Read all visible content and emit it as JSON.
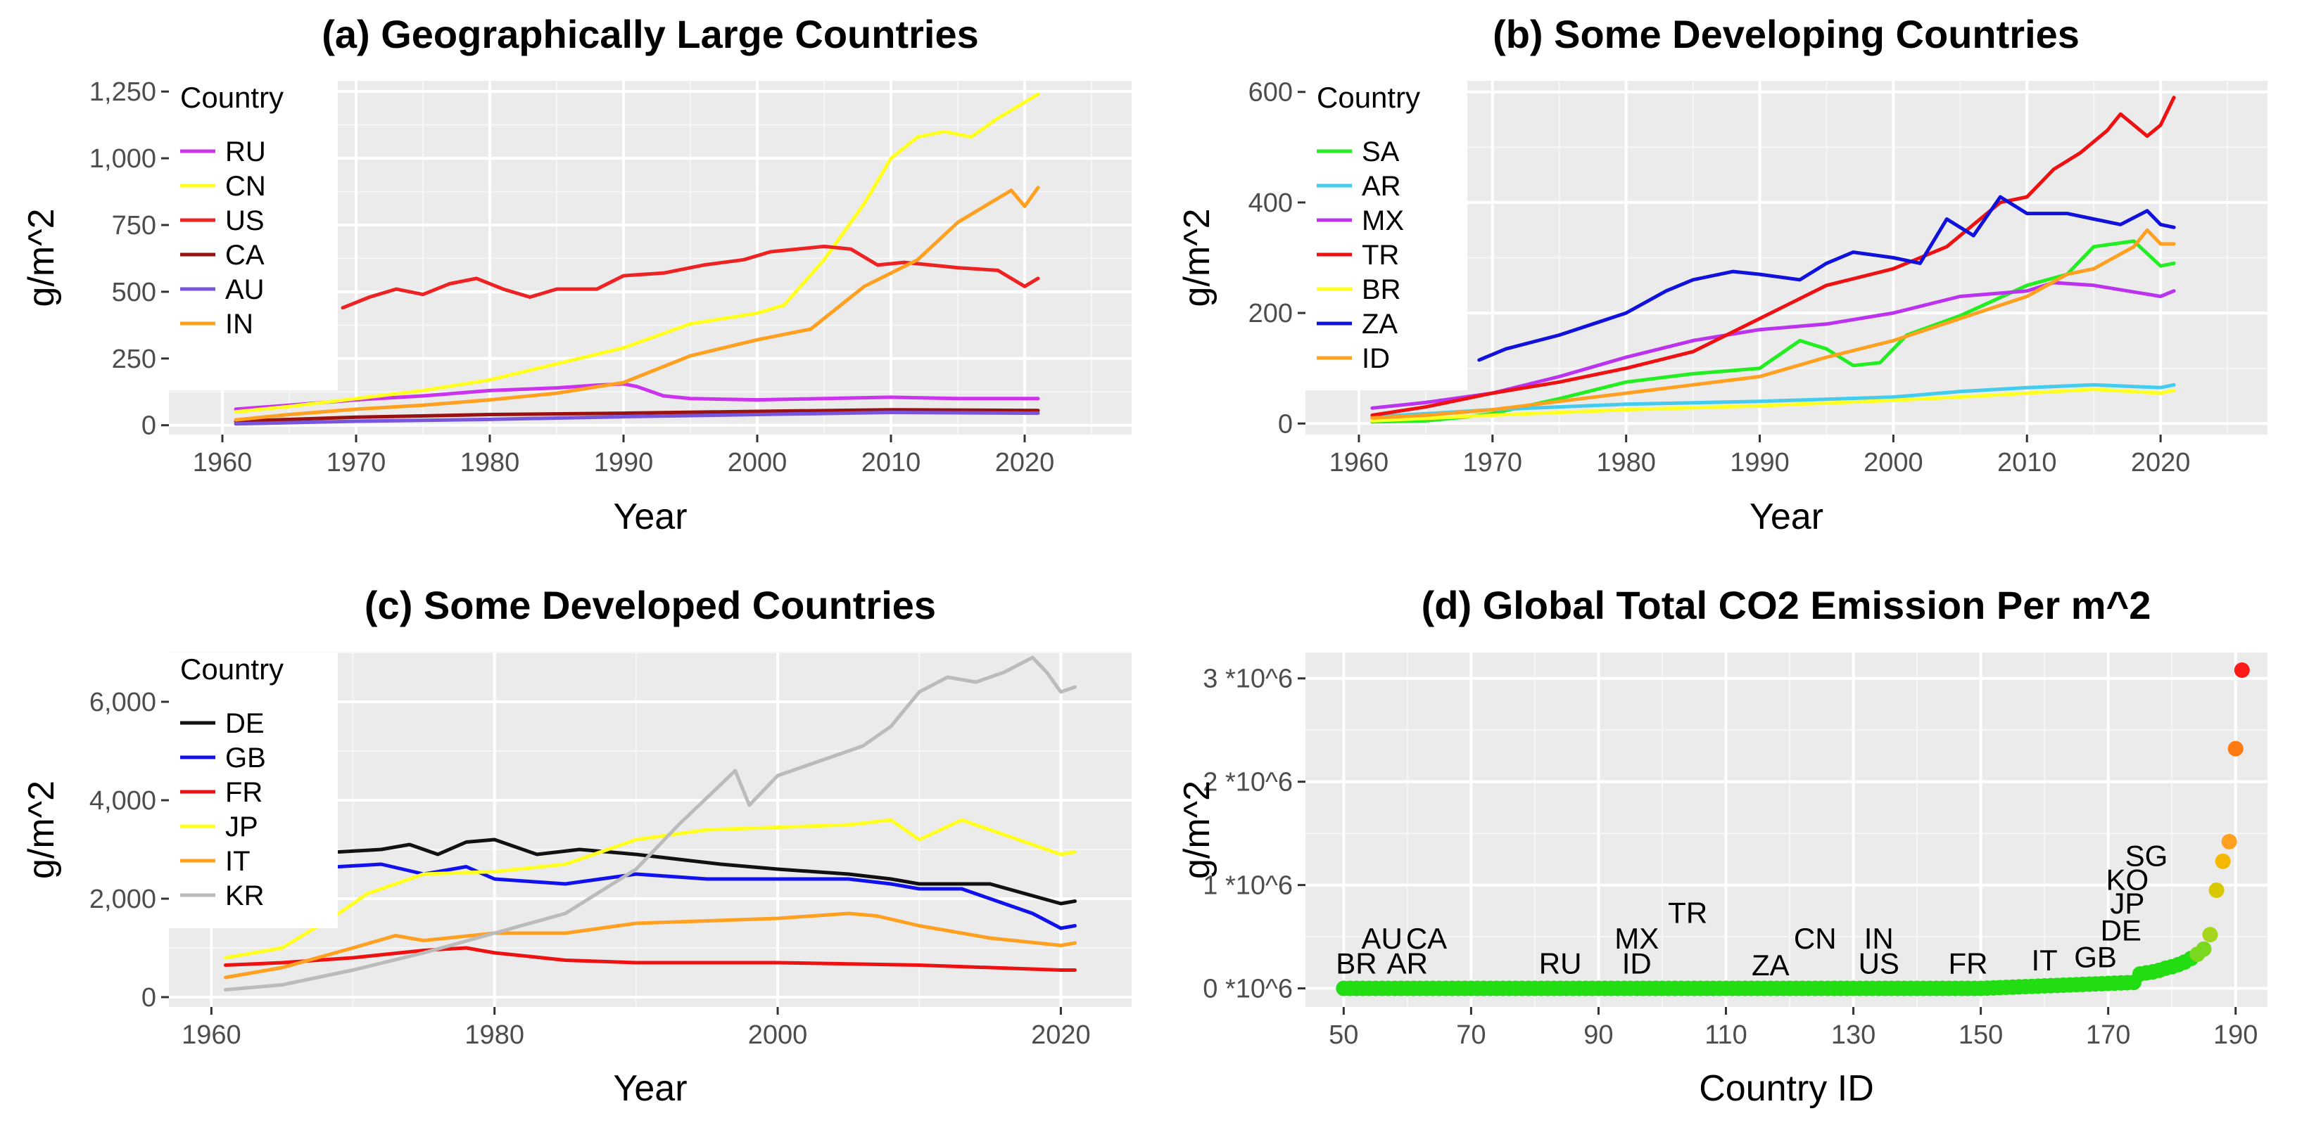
{
  "chart_data": [
    {
      "type": "line",
      "title": "(a) Geographically Large Countries",
      "xlabel": "Year",
      "ylabel": "g/m^2",
      "xlim": [
        1956,
        2028
      ],
      "ylim": [
        -35,
        1290
      ],
      "x_ticks": [
        1960,
        1970,
        1980,
        1990,
        2000,
        2010,
        2020
      ],
      "y_ticks": [
        0,
        250,
        500,
        750,
        1000,
        1250
      ],
      "y_tick_labels": [
        "0",
        "250",
        "500",
        "750",
        "1,000",
        "1,250"
      ],
      "grid": true,
      "legend": {
        "title": "Country",
        "placement": "top-left"
      },
      "series": [
        {
          "name": "RU",
          "color": "#cc33ee",
          "x": [
            1961,
            1965,
            1970,
            1975,
            1980,
            1985,
            1988,
            1990,
            1991,
            1993,
            1995,
            2000,
            2005,
            2010,
            2015,
            2021
          ],
          "y": [
            60,
            75,
            95,
            110,
            130,
            140,
            150,
            155,
            145,
            110,
            100,
            95,
            100,
            105,
            100,
            100
          ]
        },
        {
          "name": "CN",
          "color": "#ffff22",
          "x": [
            1961,
            1965,
            1970,
            1975,
            1980,
            1985,
            1990,
            1995,
            2000,
            2002,
            2005,
            2008,
            2010,
            2012,
            2014,
            2016,
            2018,
            2021
          ],
          "y": [
            50,
            70,
            100,
            130,
            170,
            230,
            290,
            380,
            420,
            450,
            620,
            830,
            1000,
            1080,
            1100,
            1080,
            1150,
            1240
          ]
        },
        {
          "name": "US",
          "color": "#ee2222",
          "x": [
            1969,
            1971,
            1973,
            1975,
            1977,
            1979,
            1981,
            1983,
            1985,
            1988,
            1990,
            1993,
            1996,
            1999,
            2001,
            2005,
            2007,
            2009,
            2011,
            2013,
            2015,
            2018,
            2020,
            2021
          ],
          "y": [
            440,
            480,
            510,
            490,
            530,
            550,
            510,
            480,
            510,
            510,
            560,
            570,
            600,
            620,
            650,
            670,
            660,
            600,
            610,
            600,
            590,
            580,
            520,
            550
          ]
        },
        {
          "name": "CA",
          "color": "#991111",
          "x": [
            1961,
            1970,
            1980,
            1990,
            2000,
            2010,
            2021
          ],
          "y": [
            15,
            30,
            40,
            45,
            52,
            58,
            55
          ]
        },
        {
          "name": "AU",
          "color": "#7755dd",
          "x": [
            1961,
            1970,
            1980,
            1990,
            2000,
            2010,
            2021
          ],
          "y": [
            5,
            15,
            22,
            32,
            40,
            48,
            45
          ]
        },
        {
          "name": "IN",
          "color": "#ffa020",
          "x": [
            1961,
            1965,
            1970,
            1975,
            1980,
            1985,
            1990,
            1995,
            2000,
            2004,
            2008,
            2012,
            2015,
            2018,
            2019,
            2020,
            2021
          ],
          "y": [
            20,
            40,
            60,
            75,
            95,
            120,
            160,
            260,
            320,
            360,
            520,
            620,
            760,
            850,
            880,
            820,
            890
          ]
        }
      ]
    },
    {
      "type": "line",
      "title": "(b) Some Developing Countries",
      "xlabel": "Year",
      "ylabel": "g/m^2",
      "xlim": [
        1956,
        2028
      ],
      "ylim": [
        -20,
        620
      ],
      "x_ticks": [
        1960,
        1970,
        1980,
        1990,
        2000,
        2010,
        2020
      ],
      "y_ticks": [
        0,
        200,
        400,
        600
      ],
      "y_tick_labels": [
        "0",
        "200",
        "400",
        "600"
      ],
      "grid": true,
      "legend": {
        "title": "Country",
        "placement": "top-left"
      },
      "series": [
        {
          "name": "SA",
          "color": "#22ee22",
          "x": [
            1961,
            1965,
            1968,
            1970,
            1975,
            1980,
            1985,
            1990,
            1993,
            1995,
            1997,
            1999,
            2001,
            2005,
            2010,
            2013,
            2015,
            2018,
            2020,
            2021
          ],
          "y": [
            3,
            5,
            12,
            18,
            45,
            75,
            90,
            100,
            150,
            135,
            105,
            110,
            160,
            195,
            250,
            270,
            320,
            330,
            285,
            290
          ]
        },
        {
          "name": "AR",
          "color": "#44ccee",
          "x": [
            1961,
            1970,
            1980,
            1990,
            2000,
            2005,
            2010,
            2015,
            2020,
            2021
          ],
          "y": [
            12,
            25,
            35,
            40,
            48,
            58,
            65,
            70,
            65,
            70
          ]
        },
        {
          "name": "MX",
          "color": "#bb33ee",
          "x": [
            1961,
            1965,
            1970,
            1975,
            1980,
            1985,
            1990,
            1995,
            2000,
            2005,
            2010,
            2012,
            2015,
            2020,
            2021
          ],
          "y": [
            28,
            38,
            55,
            85,
            120,
            150,
            170,
            180,
            200,
            230,
            240,
            255,
            250,
            230,
            240
          ]
        },
        {
          "name": "TR",
          "color": "#ee1111",
          "x": [
            1961,
            1965,
            1970,
            1975,
            1980,
            1985,
            1990,
            1995,
            2000,
            2002,
            2004,
            2006,
            2008,
            2010,
            2012,
            2014,
            2016,
            2017,
            2019,
            2020,
            2021
          ],
          "y": [
            15,
            30,
            55,
            75,
            100,
            130,
            190,
            250,
            280,
            300,
            320,
            360,
            400,
            410,
            460,
            490,
            530,
            560,
            520,
            540,
            590
          ]
        },
        {
          "name": "BR",
          "color": "#ffff22",
          "x": [
            1961,
            1970,
            1980,
            1990,
            2000,
            2005,
            2010,
            2015,
            2020,
            2021
          ],
          "y": [
            5,
            15,
            25,
            32,
            42,
            48,
            55,
            62,
            55,
            60
          ]
        },
        {
          "name": "ZA",
          "color": "#1111dd",
          "x": [
            1969,
            1971,
            1975,
            1980,
            1983,
            1985,
            1988,
            1990,
            1993,
            1995,
            1997,
            2000,
            2002,
            2004,
            2006,
            2008,
            2010,
            2013,
            2015,
            2017,
            2019,
            2020,
            2021
          ],
          "y": [
            115,
            135,
            160,
            200,
            240,
            260,
            275,
            270,
            260,
            290,
            310,
            300,
            290,
            370,
            340,
            410,
            380,
            380,
            370,
            360,
            385,
            360,
            355
          ]
        },
        {
          "name": "ID",
          "color": "#ffa020",
          "x": [
            1961,
            1965,
            1970,
            1975,
            1980,
            1985,
            1990,
            1995,
            2000,
            2005,
            2010,
            2013,
            2015,
            2018,
            2019,
            2020,
            2021
          ],
          "y": [
            10,
            15,
            25,
            40,
            55,
            70,
            85,
            120,
            150,
            190,
            230,
            270,
            280,
            320,
            350,
            325,
            325
          ]
        }
      ]
    },
    {
      "type": "line",
      "title": "(c) Some Developed Countries",
      "xlabel": "Year",
      "ylabel": "g/m^2",
      "xlim": [
        1957,
        2025
      ],
      "ylim": [
        -200,
        7000
      ],
      "x_ticks": [
        1960,
        1980,
        2000,
        2020
      ],
      "y_ticks": [
        0,
        2000,
        4000,
        6000
      ],
      "y_tick_labels": [
        "0",
        "2,000",
        "4,000",
        "6,000"
      ],
      "grid": true,
      "legend": {
        "title": "Country",
        "placement": "top-left"
      },
      "series": [
        {
          "name": "DE",
          "color": "#111111",
          "x": [
            1969,
            1972,
            1974,
            1976,
            1978,
            1980,
            1983,
            1986,
            1990,
            1993,
            1996,
            2000,
            2005,
            2008,
            2010,
            2015,
            2020,
            2021
          ],
          "y": [
            2950,
            3000,
            3100,
            2900,
            3150,
            3200,
            2900,
            3000,
            2900,
            2800,
            2700,
            2600,
            2500,
            2400,
            2300,
            2300,
            1900,
            1950
          ]
        },
        {
          "name": "GB",
          "color": "#1111ee",
          "x": [
            1969,
            1972,
            1975,
            1978,
            1980,
            1985,
            1990,
            1995,
            2000,
            2005,
            2008,
            2010,
            2013,
            2015,
            2018,
            2020,
            2021
          ],
          "y": [
            2650,
            2700,
            2500,
            2650,
            2400,
            2300,
            2500,
            2400,
            2400,
            2400,
            2300,
            2200,
            2200,
            2000,
            1700,
            1400,
            1450
          ]
        },
        {
          "name": "FR",
          "color": "#ee1111",
          "x": [
            1961,
            1965,
            1970,
            1975,
            1978,
            1980,
            1985,
            1990,
            2000,
            2010,
            2020,
            2021
          ],
          "y": [
            650,
            700,
            800,
            950,
            1000,
            900,
            750,
            700,
            700,
            650,
            550,
            550
          ]
        },
        {
          "name": "JP",
          "color": "#ffff22",
          "x": [
            1961,
            1965,
            1969,
            1971,
            1975,
            1980,
            1985,
            1990,
            1995,
            2000,
            2005,
            2008,
            2010,
            2013,
            2015,
            2020,
            2021
          ],
          "y": [
            800,
            1000,
            1700,
            2100,
            2500,
            2550,
            2700,
            3200,
            3400,
            3450,
            3500,
            3600,
            3200,
            3600,
            3400,
            2900,
            2950
          ]
        },
        {
          "name": "IT",
          "color": "#ffa020",
          "x": [
            1961,
            1965,
            1970,
            1973,
            1975,
            1980,
            1985,
            1990,
            2000,
            2005,
            2007,
            2010,
            2015,
            2020,
            2021
          ],
          "y": [
            400,
            600,
            1000,
            1250,
            1150,
            1300,
            1300,
            1500,
            1600,
            1700,
            1650,
            1450,
            1200,
            1050,
            1100
          ]
        },
        {
          "name": "KR",
          "color": "#bbbbbb",
          "x": [
            1961,
            1965,
            1970,
            1975,
            1980,
            1985,
            1990,
            1993,
            1997,
            1998,
            2000,
            2004,
            2006,
            2008,
            2010,
            2012,
            2014,
            2016,
            2018,
            2019,
            2020,
            2021
          ],
          "y": [
            150,
            250,
            550,
            900,
            1300,
            1700,
            2600,
            3500,
            4600,
            3900,
            4500,
            4900,
            5100,
            5500,
            6200,
            6500,
            6400,
            6600,
            6900,
            6600,
            6200,
            6300
          ]
        }
      ]
    },
    {
      "type": "scatter",
      "title": "(d) Global Total CO2 Emission Per m^2",
      "xlabel": "Country ID",
      "ylabel": "g/m^2",
      "xlim": [
        44,
        195
      ],
      "ylim": [
        -180000,
        3250000
      ],
      "x_ticks": [
        50,
        70,
        90,
        110,
        130,
        150,
        170,
        190
      ],
      "y_ticks": [
        0,
        1000000,
        2000000,
        3000000
      ],
      "y_tick_labels": [
        "0 *10^6",
        "1 *10^6",
        "2 *10^6",
        "3 *10^6"
      ],
      "grid": true,
      "points": [
        {
          "x": 175,
          "y": 140000
        },
        {
          "x": 176,
          "y": 150000
        },
        {
          "x": 177,
          "y": 160000
        },
        {
          "x": 178,
          "y": 175000
        },
        {
          "x": 179,
          "y": 195000
        },
        {
          "x": 180,
          "y": 210000
        },
        {
          "x": 181,
          "y": 230000
        },
        {
          "x": 182,
          "y": 255000
        },
        {
          "x": 183,
          "y": 290000
        },
        {
          "x": 184,
          "y": 330000
        },
        {
          "x": 185,
          "y": 380000
        },
        {
          "x": 186,
          "y": 520000
        },
        {
          "x": 187,
          "y": 950000
        },
        {
          "x": 188,
          "y": 1230000
        },
        {
          "x": 189,
          "y": 1420000
        },
        {
          "x": 190,
          "y": 2320000
        },
        {
          "x": 191,
          "y": 3080000
        }
      ],
      "annotations": [
        {
          "label": "BR",
          "x": 52,
          "y": 240000
        },
        {
          "label": "AU",
          "x": 56,
          "y": 480000
        },
        {
          "label": "CA",
          "x": 63,
          "y": 480000
        },
        {
          "label": "AR",
          "x": 60,
          "y": 240000
        },
        {
          "label": "RU",
          "x": 84,
          "y": 240000
        },
        {
          "label": "MX",
          "x": 96,
          "y": 480000
        },
        {
          "label": "ID",
          "x": 96,
          "y": 240000
        },
        {
          "label": "TR",
          "x": 104,
          "y": 730000
        },
        {
          "label": "ZA",
          "x": 117,
          "y": 220000
        },
        {
          "label": "CN",
          "x": 124,
          "y": 480000
        },
        {
          "label": "IN",
          "x": 134,
          "y": 480000
        },
        {
          "label": "US",
          "x": 134,
          "y": 240000
        },
        {
          "label": "FR",
          "x": 148,
          "y": 240000
        },
        {
          "label": "IT",
          "x": 160,
          "y": 270000
        },
        {
          "label": "GB",
          "x": 168,
          "y": 300000
        },
        {
          "label": "DE",
          "x": 172,
          "y": 560000
        },
        {
          "label": "JP",
          "x": 173,
          "y": 820000
        },
        {
          "label": "KO",
          "x": 173,
          "y": 1050000
        },
        {
          "label": "SG",
          "x": 176,
          "y": 1280000
        }
      ]
    }
  ]
}
